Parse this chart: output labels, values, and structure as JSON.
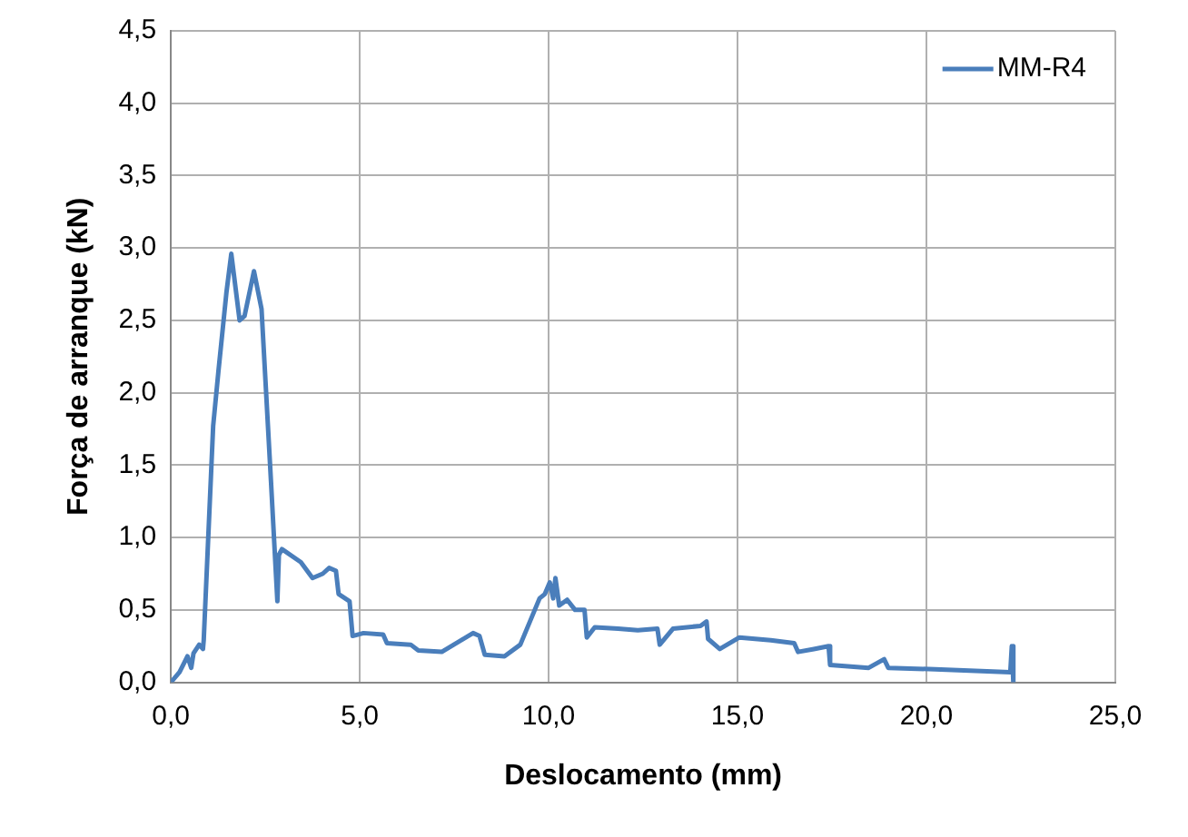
{
  "chart_data": {
    "type": "line",
    "xlabel": "Deslocamento (mm)",
    "ylabel": "Força de arranque (kN)",
    "xlim": [
      0,
      25
    ],
    "xticks": [
      {
        "value": 0,
        "label": "0,0"
      },
      {
        "value": 5,
        "label": "5,0"
      },
      {
        "value": 10,
        "label": "10,0"
      },
      {
        "value": 15,
        "label": "15,0"
      },
      {
        "value": 20,
        "label": "20,0"
      },
      {
        "value": 25,
        "label": "25,0"
      }
    ],
    "ylim": [
      0,
      4.5
    ],
    "yticks": [
      {
        "value": 0,
        "label": "0,0"
      },
      {
        "value": 0.5,
        "label": "0,5"
      },
      {
        "value": 1,
        "label": "1,0"
      },
      {
        "value": 1.5,
        "label": "1,5"
      },
      {
        "value": 2,
        "label": "2,0"
      },
      {
        "value": 2.5,
        "label": "2,5"
      },
      {
        "value": 3,
        "label": "3,0"
      },
      {
        "value": 3.5,
        "label": "3,5"
      },
      {
        "value": 4,
        "label": "4,0"
      },
      {
        "value": 4.5,
        "label": "4,5"
      }
    ],
    "grid": true,
    "legend": "top right",
    "marker": "none",
    "line_style": "solid",
    "series": [
      {
        "name": "MM-R4",
        "color": "#4a7ebb",
        "x": [
          0,
          0.23,
          0.44,
          0.54,
          0.6,
          0.75,
          0.85,
          0.87,
          1.12,
          1.26,
          1.47,
          1.6,
          1.82,
          1.95,
          2.2,
          2.4,
          2.65,
          2.82,
          2.86,
          2.94,
          3.44,
          3.75,
          4.02,
          4.19,
          4.37,
          4.44,
          4.73,
          4.81,
          5.1,
          5.62,
          5.72,
          6.35,
          6.55,
          7.17,
          8.0,
          8.17,
          8.31,
          8.83,
          9.25,
          9.76,
          9.9,
          10.03,
          10.12,
          10.18,
          10.28,
          10.49,
          10.7,
          10.95,
          11.01,
          11.22,
          11.84,
          12.36,
          12.88,
          12.94,
          13.29,
          14.02,
          14.18,
          14.22,
          14.53,
          15.05,
          15.88,
          16.5,
          16.6,
          17.02,
          17.41,
          17.45,
          18.47,
          18.88,
          18.99,
          20.23,
          22.22,
          22.26,
          22.3
        ],
        "values": [
          0,
          0.07,
          0.18,
          0.1,
          0.2,
          0.26,
          0.23,
          0.29,
          1.77,
          2.15,
          2.69,
          2.96,
          2.5,
          2.53,
          2.84,
          2.58,
          1.39,
          0.56,
          0.88,
          0.92,
          0.83,
          0.72,
          0.75,
          0.79,
          0.77,
          0.61,
          0.56,
          0.32,
          0.34,
          0.33,
          0.27,
          0.26,
          0.22,
          0.21,
          0.34,
          0.32,
          0.19,
          0.18,
          0.26,
          0.58,
          0.61,
          0.69,
          0.58,
          0.72,
          0.53,
          0.57,
          0.5,
          0.5,
          0.31,
          0.38,
          0.37,
          0.36,
          0.37,
          0.26,
          0.37,
          0.39,
          0.42,
          0.3,
          0.23,
          0.31,
          0.29,
          0.27,
          0.21,
          0.23,
          0.25,
          0.12,
          0.1,
          0.16,
          0.1,
          0.09,
          0.07,
          0.25,
          0
        ]
      }
    ]
  }
}
